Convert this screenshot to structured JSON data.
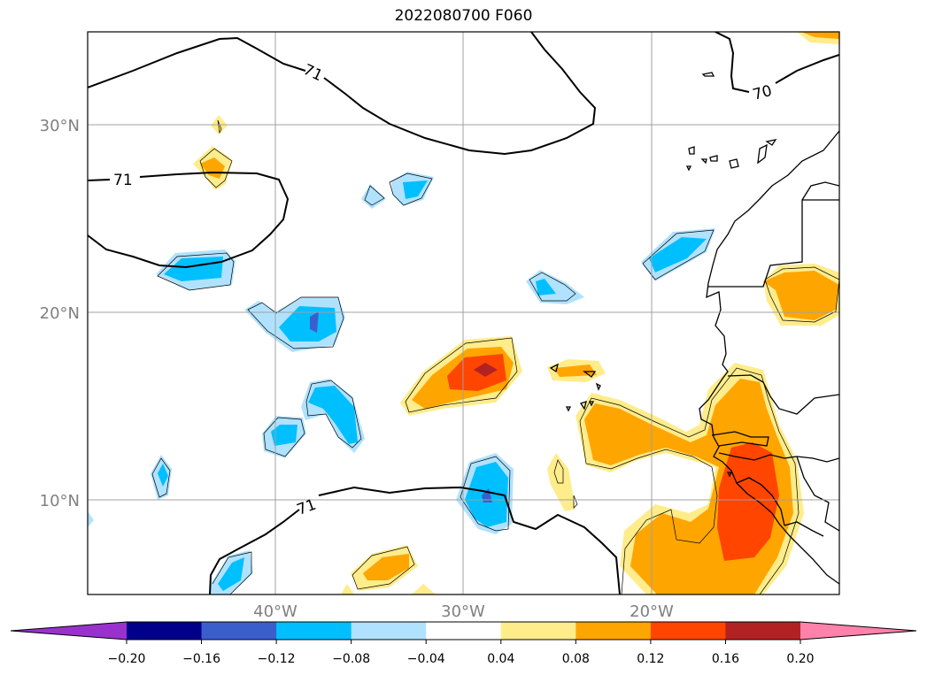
{
  "title": "2022080700 F060",
  "lat_labels": [
    "30°N",
    "20°N",
    "10°N"
  ],
  "lon_labels": [
    "40°W",
    "30°W",
    "20°W"
  ],
  "contour_labels": [
    "71",
    "71",
    "71",
    "70"
  ],
  "colorbar": {
    "tick_labels": [
      "−0.20",
      "−0.16",
      "−0.12",
      "−0.08",
      "−0.04",
      "0.04",
      "0.08",
      "0.12",
      "0.16",
      "0.20"
    ],
    "colors": [
      "#9932cc",
      "#00008b",
      "#3a5fcd",
      "#00bfff",
      "#b0e2ff",
      "#ffffff",
      "#ffec8b",
      "#ffa500",
      "#ff4500",
      "#b22222",
      "#ff82ab"
    ]
  },
  "map": {
    "lon_range": [
      -50,
      -10
    ],
    "lat_range": [
      5,
      35
    ],
    "grid": true
  }
}
